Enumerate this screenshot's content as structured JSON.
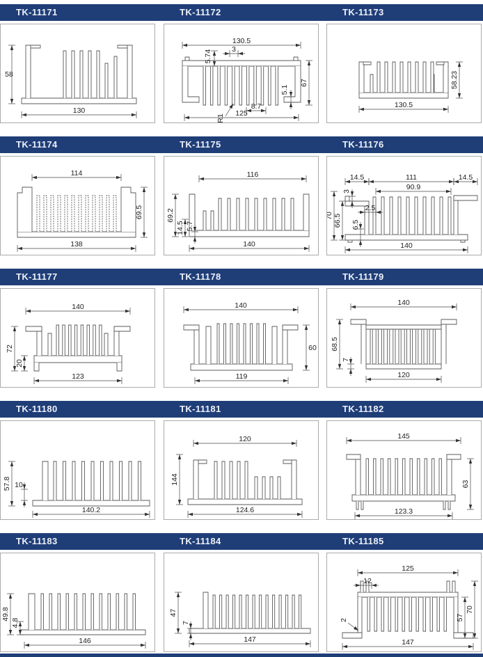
{
  "theme": {
    "header_bg": "#1f3e78",
    "header_text": "#eef1f8",
    "cell_border": "#aaaaaa",
    "profile_line": "#5a5a5a",
    "dim_line": "#474747",
    "dim_text": "#222222",
    "page_bg": "#ffffff"
  },
  "cells": [
    {
      "part": "TK-11171",
      "dims": [
        "58",
        "130"
      ]
    },
    {
      "part": "TK-11172",
      "dims": [
        "130.5",
        "5.74",
        "3",
        "67",
        "5.1",
        "8.7",
        "125",
        "R1"
      ]
    },
    {
      "part": "TK-11173",
      "dims": [
        "58.23",
        "130.5"
      ]
    },
    {
      "part": "TK-11174",
      "dims": [
        "114",
        "69.5",
        "138"
      ]
    },
    {
      "part": "TK-11175",
      "dims": [
        "116",
        "69.2",
        "14.5",
        "5.7",
        "140"
      ]
    },
    {
      "part": "TK-11176",
      "dims": [
        "14.5",
        "111",
        "14.5",
        "90.9",
        "3",
        "70",
        "66.5",
        "2.5",
        "6.5",
        "140"
      ]
    },
    {
      "part": "TK-11177",
      "dims": [
        "140",
        "72",
        "20",
        "123"
      ]
    },
    {
      "part": "TK-11178",
      "dims": [
        "140",
        "60",
        "119"
      ]
    },
    {
      "part": "TK-11179",
      "dims": [
        "140",
        "68.5",
        "7",
        "120"
      ]
    },
    {
      "part": "TK-11180",
      "dims": [
        "57.8",
        "10",
        "140.2"
      ]
    },
    {
      "part": "TK-11181",
      "dims": [
        "120",
        "144",
        "124.6"
      ]
    },
    {
      "part": "TK-11182",
      "dims": [
        "145",
        "63",
        "123.3"
      ]
    },
    {
      "part": "TK-11183",
      "dims": [
        "49.8",
        "4.8",
        "146"
      ]
    },
    {
      "part": "TK-11184",
      "dims": [
        "47",
        "7",
        "147"
      ]
    },
    {
      "part": "TK-11185",
      "dims": [
        "125",
        "12",
        "57",
        "70",
        "2",
        "147"
      ]
    }
  ]
}
